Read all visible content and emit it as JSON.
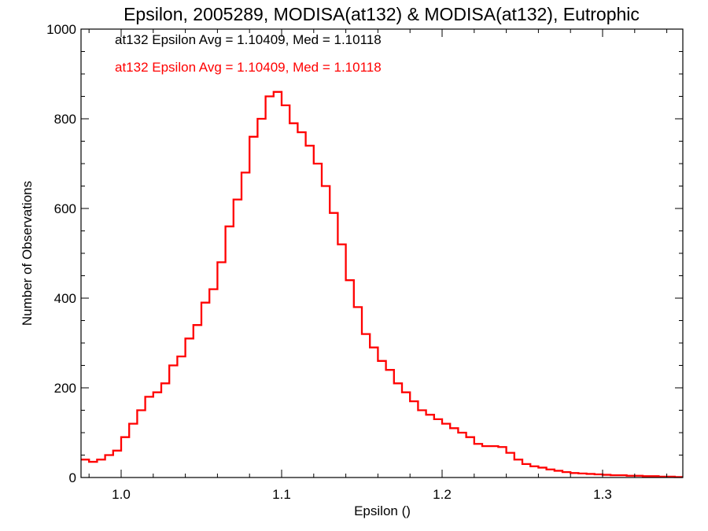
{
  "chart_data": {
    "type": "line",
    "subtype": "step-histogram",
    "title": "Epsilon, 2005289, MODISA(at132) & MODISA(at132), Eutrophic",
    "xlabel": "Epsilon ()",
    "ylabel": "Number of Observations",
    "xlim": [
      0.975,
      1.35
    ],
    "ylim": [
      0,
      1000
    ],
    "x_ticks": [
      1.0,
      1.1,
      1.2,
      1.3
    ],
    "x_tick_labels": [
      "1.0",
      "1.1",
      "1.2",
      "1.3"
    ],
    "y_ticks": [
      0,
      200,
      400,
      600,
      800,
      1000
    ],
    "y_tick_labels": [
      "0",
      "200",
      "400",
      "600",
      "800",
      "1000"
    ],
    "grid": false,
    "annotations": [
      {
        "text": "at132 Epsilon Avg = 1.10409, Med = 1.10118",
        "color": "#000000"
      },
      {
        "text": "at132 Epsilon Avg = 1.10409, Med = 1.10118",
        "color": "#ff0000"
      }
    ],
    "series": [
      {
        "color": "#ff0000",
        "x": [
          0.975,
          0.98,
          0.985,
          0.99,
          0.995,
          1.0,
          1.005,
          1.01,
          1.015,
          1.02,
          1.025,
          1.03,
          1.035,
          1.04,
          1.045,
          1.05,
          1.055,
          1.06,
          1.065,
          1.07,
          1.075,
          1.08,
          1.085,
          1.09,
          1.095,
          1.1,
          1.105,
          1.11,
          1.115,
          1.12,
          1.125,
          1.13,
          1.135,
          1.14,
          1.145,
          1.15,
          1.155,
          1.16,
          1.165,
          1.17,
          1.175,
          1.18,
          1.185,
          1.19,
          1.195,
          1.2,
          1.205,
          1.21,
          1.215,
          1.22,
          1.225,
          1.23,
          1.235,
          1.24,
          1.245,
          1.25,
          1.255,
          1.26,
          1.265,
          1.27,
          1.275,
          1.28,
          1.285,
          1.29,
          1.295,
          1.3,
          1.305,
          1.31,
          1.315,
          1.32,
          1.325,
          1.33,
          1.335,
          1.34,
          1.345,
          1.35
        ],
        "y": [
          40,
          35,
          40,
          50,
          60,
          90,
          120,
          150,
          180,
          190,
          210,
          250,
          270,
          310,
          340,
          390,
          420,
          480,
          560,
          620,
          680,
          760,
          800,
          850,
          860,
          830,
          790,
          770,
          740,
          700,
          650,
          590,
          520,
          440,
          380,
          320,
          290,
          260,
          240,
          210,
          190,
          170,
          150,
          140,
          130,
          120,
          110,
          100,
          90,
          75,
          70,
          70,
          68,
          55,
          40,
          30,
          25,
          22,
          18,
          15,
          12,
          10,
          9,
          8,
          7,
          6,
          5,
          5,
          4,
          4,
          3,
          3,
          2,
          2,
          1,
          1
        ]
      }
    ]
  }
}
